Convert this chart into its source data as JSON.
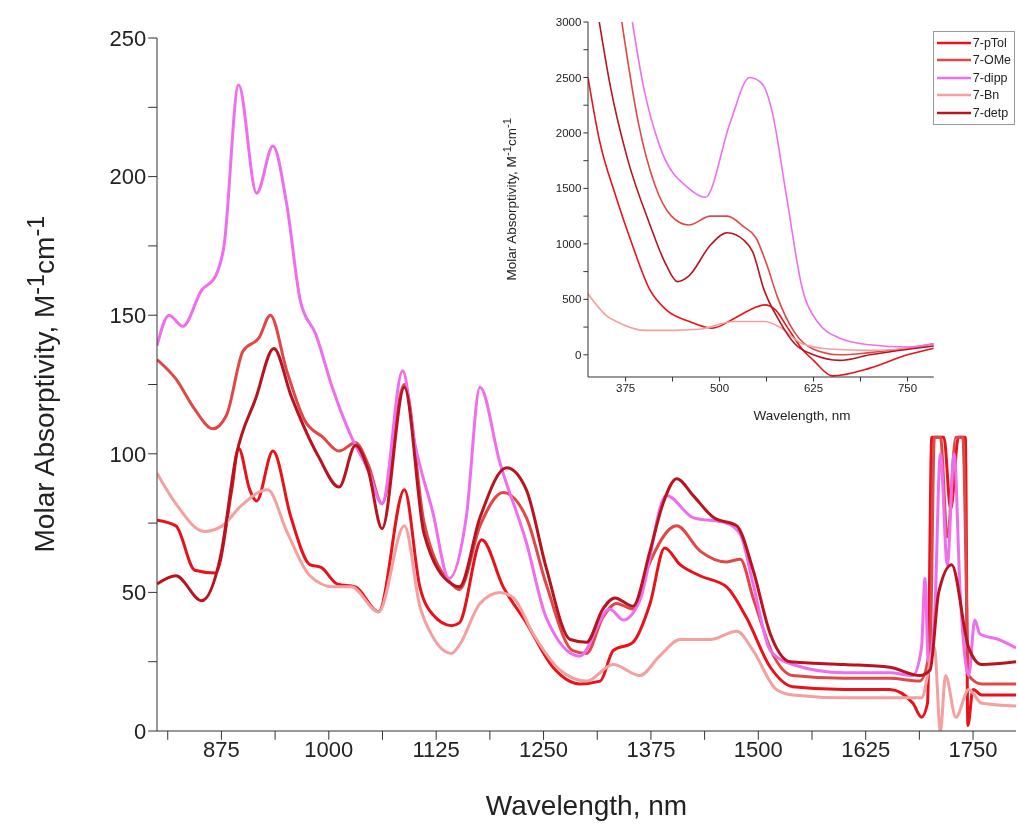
{
  "chart_data": [
    {
      "type": "line",
      "xlabel": "Wavelength, nm",
      "ylabel": "Molar Absorptivity, M$^{-1}$cm$^{-1}$",
      "xlim": [
        800,
        1800
      ],
      "ylim": [
        0,
        250
      ],
      "xticks": [
        {
          "value": 812.5,
          "label": null
        },
        875,
        {
          "value": 937.5,
          "label": null
        },
        1000,
        {
          "value": 1062.5,
          "label": null
        },
        1125,
        {
          "value": 1187.5,
          "label": null
        },
        1250,
        {
          "value": 1312.5,
          "label": null
        },
        1375,
        {
          "value": 1437.5,
          "label": null
        },
        1500,
        {
          "value": 1562.5,
          "label": null
        },
        1625,
        {
          "value": 1687.5,
          "label": null
        },
        1750
      ],
      "yticks": [
        0,
        {
          "value": 25,
          "label": null
        },
        50,
        {
          "value": 75,
          "label": null
        },
        100,
        {
          "value": 125,
          "label": null
        },
        150,
        {
          "value": 175,
          "label": null
        },
        200,
        {
          "value": 225,
          "label": null
        },
        250
      ],
      "series": [
        {
          "color": "#e8121a",
          "x": [
            800,
            822,
            844,
            868,
            887,
            895,
            908,
            916,
            935,
            956,
            978,
            991,
            1010,
            1031,
            1058,
            1088,
            1106,
            1121,
            1143,
            1152,
            1178,
            1203,
            1230,
            1261,
            1292,
            1316,
            1331,
            1354,
            1374,
            1391,
            1409,
            1432,
            1463,
            1486,
            1514,
            1540,
            1600,
            1653,
            1680,
            1690,
            1697,
            1702,
            1716,
            1724,
            1733,
            1741,
            1744,
            1750,
            1760,
            1800
          ],
          "values": [
            76,
            74,
            58,
            57,
            87,
            102,
            87,
            83,
            101,
            77,
            60,
            59,
            53,
            52,
            43,
            87,
            52,
            42,
            38,
            39,
            69,
            52,
            39,
            23,
            17,
            18,
            29,
            32,
            46,
            66,
            60,
            56,
            52,
            41,
            23,
            16,
            15,
            15,
            10,
            5,
            10,
            106,
            106,
            80,
            106,
            106,
            2,
            15,
            13,
            13
          ]
        },
        {
          "color": "#e04848",
          "x": [
            800,
            822,
            844,
            865,
            881,
            900,
            919,
            932,
            951,
            972,
            993,
            1012,
            1031,
            1046,
            1062,
            1088,
            1111,
            1143,
            1152,
            1176,
            1203,
            1230,
            1253,
            1284,
            1300,
            1319,
            1335,
            1354,
            1370,
            1405,
            1432,
            1463,
            1479,
            1494,
            1518,
            1540,
            1600,
            1653,
            1688,
            1700,
            1705,
            1712,
            1720,
            1730,
            1738,
            1745,
            1760,
            1800
          ],
          "values": [
            134,
            127,
            116,
            109,
            114,
            137,
            142,
            150,
            130,
            112,
            106,
            101,
            104,
            96,
            82,
            125,
            75,
            53,
            51,
            74,
            86,
            77,
            53,
            29,
            28,
            41,
            46,
            44,
            58,
            74,
            65,
            61,
            62,
            48,
            27,
            20,
            19,
            19,
            18,
            30,
            106,
            106,
            70,
            106,
            106,
            20,
            17,
            17
          ]
        },
        {
          "color": "#ee6eee",
          "x": [
            800,
            814,
            830,
            852,
            868,
            878,
            895,
            916,
            935,
            951,
            967,
            985,
            1004,
            1025,
            1046,
            1062,
            1086,
            1100,
            1121,
            1140,
            1160,
            1176,
            1199,
            1230,
            1253,
            1292,
            1327,
            1343,
            1362,
            1393,
            1424,
            1463,
            1479,
            1494,
            1514,
            1540,
            1600,
            1653,
            1680,
            1690,
            1694,
            1698,
            1705,
            1712,
            1720,
            1728,
            1735,
            1745,
            1752,
            1758,
            1780,
            1800
          ],
          "values": [
            139,
            150,
            146,
            159,
            164,
            175,
            233,
            194,
            211,
            190,
            155,
            143,
            124,
            107,
            94,
            82,
            130,
            104,
            79,
            55,
            77,
            124,
            97,
            68,
            41,
            27,
            44,
            40,
            47,
            85,
            77,
            75,
            71,
            53,
            29,
            24,
            21,
            21,
            20,
            30,
            55,
            25,
            40,
            100,
            60,
            100,
            50,
            20,
            40,
            35,
            33,
            30
          ]
        },
        {
          "color": "#f4a0a0",
          "x": [
            800,
            822,
            855,
            876,
            897,
            929,
            951,
            978,
            1005,
            1026,
            1058,
            1088,
            1106,
            1121,
            1143,
            1152,
            1176,
            1199,
            1215,
            1238,
            1269,
            1300,
            1331,
            1362,
            1385,
            1409,
            1444,
            1475,
            1494,
            1521,
            1540,
            1600,
            1653,
            1690,
            1705,
            1712,
            1718,
            1730,
            1745,
            1760,
            1800
          ],
          "values": [
            93,
            82,
            72,
            74,
            81,
            87,
            72,
            56,
            52,
            52,
            43,
            74,
            45,
            34,
            28,
            31,
            46,
            50,
            48,
            35,
            22,
            18,
            24,
            20,
            27,
            33,
            33,
            36,
            29,
            15,
            13,
            12,
            12,
            12,
            30,
            0,
            20,
            5,
            15,
            10,
            9
          ]
        },
        {
          "color": "#b81420",
          "x": [
            800,
            822,
            852,
            874,
            892,
            915,
            936,
            956,
            988,
            1012,
            1031,
            1046,
            1062,
            1088,
            1111,
            1143,
            1152,
            1176,
            1207,
            1230,
            1253,
            1281,
            1300,
            1319,
            1333,
            1354,
            1374,
            1389,
            1405,
            1424,
            1448,
            1475,
            1494,
            1514,
            1537,
            1600,
            1653,
            1688,
            1700,
            1710,
            1725,
            1745,
            1760,
            1800
          ],
          "values": [
            53,
            56,
            47,
            63,
            99,
            120,
            138,
            121,
            99,
            88,
            103,
            94,
            73,
            124,
            71,
            53,
            52,
            77,
            95,
            87,
            59,
            33,
            32,
            44,
            48,
            45,
            65,
            82,
            91,
            85,
            77,
            74,
            58,
            35,
            25,
            24,
            23,
            20,
            22,
            50,
            60,
            30,
            24,
            25
          ]
        }
      ]
    },
    {
      "type": "line",
      "xlabel": "Wavelength, nm",
      "ylabel": "Molar Absorptivity, M$^{-1}$cm$^{-1}$",
      "xlim": [
        325,
        785
      ],
      "ylim": [
        -200,
        3000
      ],
      "legend": "top right",
      "xticks": [
        375,
        {
          "value": 437.5,
          "label": null
        },
        500,
        {
          "value": 562.5,
          "label": null
        },
        625,
        {
          "value": 687.5,
          "label": null
        },
        750
      ],
      "yticks": [
        0,
        {
          "value": 250,
          "label": null
        },
        500,
        {
          "value": 750,
          "label": null
        },
        1000,
        {
          "value": 1250,
          "label": null
        },
        1500,
        {
          "value": 1750,
          "label": null
        },
        2000,
        {
          "value": 2250,
          "label": null
        },
        2500,
        {
          "value": 2750,
          "label": null
        },
        3000
      ],
      "series": [
        {
          "name": "7-pTol",
          "color": "#e8121a",
          "x": [
            325,
            340,
            362,
            384,
            407,
            430,
            460,
            490,
            520,
            545,
            560,
            575,
            590,
            610,
            625,
            650,
            700,
            750,
            785
          ],
          "values": [
            2500,
            1940,
            1430,
            990,
            590,
            400,
            300,
            240,
            330,
            420,
            450,
            400,
            250,
            50,
            -50,
            -190,
            -120,
            0,
            60
          ]
        },
        {
          "name": "7-OMe",
          "color": "#e04848",
          "x": [
            370,
            392,
            414,
            436,
            459,
            488,
            510,
            533,
            548,
            563,
            577,
            600,
            625,
            660,
            700,
            785
          ],
          "values": [
            3000,
            2090,
            1530,
            1250,
            1170,
            1250,
            1250,
            1150,
            1060,
            810,
            520,
            200,
            50,
            0,
            20,
            100
          ]
        },
        {
          "name": "7-dipp",
          "color": "#ee6eee",
          "x": [
            384,
            399,
            421,
            459,
            481,
            514,
            540,
            557,
            570,
            589,
            610,
            630,
            660,
            700,
            750,
            785
          ],
          "values": [
            3000,
            2410,
            1870,
            1500,
            1420,
            2090,
            2500,
            2440,
            2190,
            1430,
            600,
            300,
            150,
            90,
            70,
            100
          ]
        },
        {
          "name": "7-Bn",
          "color": "#f4a0a0",
          "x": [
            325,
            352,
            360,
            401,
            437,
            472,
            520,
            560,
            580,
            610,
            650,
            700,
            785
          ],
          "values": [
            550,
            340,
            310,
            220,
            220,
            230,
            300,
            300,
            250,
            100,
            50,
            40,
            80
          ]
        },
        {
          "name": "7-detp",
          "color": "#b81420",
          "x": [
            340,
            355,
            377,
            407,
            429,
            444,
            459,
            488,
            510,
            533,
            544,
            559,
            580,
            600,
            625,
            660,
            700,
            785
          ],
          "values": [
            3000,
            2410,
            1780,
            1180,
            810,
            660,
            710,
            990,
            1100,
            1030,
            930,
            590,
            300,
            100,
            0,
            -50,
            0,
            80
          ]
        }
      ]
    }
  ]
}
